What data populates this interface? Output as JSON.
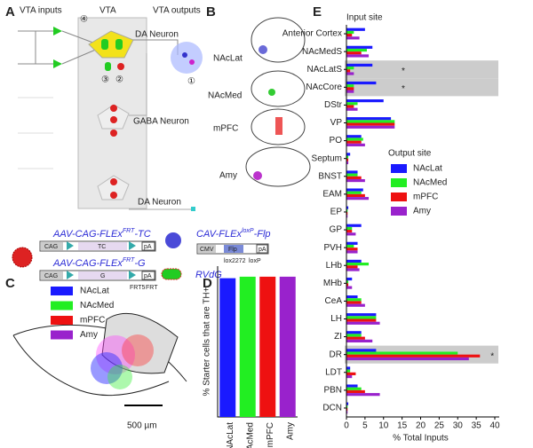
{
  "panel_labels": [
    "A",
    "B",
    "C",
    "D",
    "E"
  ],
  "panel_a": {
    "headers": [
      "VTA inputs",
      "VTA",
      "VTA outputs"
    ],
    "neurons": [
      "DA Neuron",
      "GABA Neuron",
      "DA Neuron"
    ],
    "markers": [
      "④",
      "③",
      "②",
      "①"
    ],
    "constructs": [
      {
        "name": "AAV-CAG-FLEx",
        "sup": "FRT",
        "suffix": "-TC"
      },
      {
        "name": "AAV-CAG-FLEx",
        "sup": "FRT",
        "suffix": "-G"
      },
      {
        "name": "CAV-FLEx",
        "sup": "loxP",
        "suffix": "-Flp"
      },
      {
        "name": "RVdG"
      }
    ],
    "elements": [
      "CAG",
      "TC",
      "pA",
      "CAG",
      "G",
      "pA",
      "FRT5",
      "FRT",
      "CMV",
      "Flp",
      "pA",
      "lox2272",
      "loxP"
    ]
  },
  "panel_b": {
    "sites": [
      "NAcLat",
      "NAcMed",
      "mPFC",
      "Amy"
    ]
  },
  "panel_c": {
    "legend": [
      {
        "name": "NAcLat",
        "color": "#1a1aff"
      },
      {
        "name": "NAcMed",
        "color": "#22ee22"
      },
      {
        "name": "mPFC",
        "color": "#ee1111"
      },
      {
        "name": "Amy",
        "color": "#9922cc"
      }
    ],
    "scale_bar": "500 µm"
  },
  "chart_data": [
    {
      "type": "bar",
      "ylabel": "% Starter cells that are TH+",
      "categories": [
        "NAcLat",
        "NAcMed",
        "mPFC",
        "Amy"
      ],
      "values": [
        92,
        93,
        93,
        93
      ],
      "colors": [
        "#1a1aff",
        "#22ee22",
        "#ee1111",
        "#9922cc"
      ],
      "ylim": [
        0,
        100
      ]
    },
    {
      "type": "hbar",
      "title": "Input site",
      "xlabel": "% Total Inputs",
      "legend_title": "Output site",
      "categories": [
        "Anterior Cortex",
        "NAcMedS",
        "NAcLatS",
        "NAcCore",
        "DStr",
        "VP",
        "PO",
        "Septum",
        "BNST",
        "EAM",
        "EP",
        "GP",
        "PVH",
        "LHb",
        "MHb",
        "CeA",
        "LH",
        "ZI",
        "DR",
        "LDT",
        "PBN",
        "DCN"
      ],
      "significance": [
        null,
        null,
        "*",
        "*",
        null,
        null,
        null,
        null,
        null,
        null,
        null,
        null,
        null,
        null,
        null,
        null,
        null,
        null,
        "*",
        null,
        null,
        null
      ],
      "series": [
        {
          "name": "NAcLat",
          "color": "#1a1aff",
          "values": [
            5,
            7,
            7,
            8,
            10,
            12,
            4,
            1,
            3,
            4.5,
            0.5,
            4,
            3,
            4,
            1.5,
            3,
            8,
            4,
            8,
            1,
            3,
            0.5
          ]
        },
        {
          "name": "NAcMed",
          "color": "#22ee22",
          "values": [
            2,
            5.5,
            2,
            2,
            3,
            13,
            4.5,
            0.5,
            3,
            4,
            0.3,
            1.5,
            2,
            6,
            0.5,
            4,
            8,
            4,
            30,
            1,
            4,
            0.3
          ]
        },
        {
          "name": "mPFC",
          "color": "#ee1111",
          "values": [
            1.5,
            4,
            1,
            2,
            2,
            13,
            4,
            0.5,
            4,
            5,
            0.3,
            1.5,
            3,
            3,
            0.5,
            4,
            8,
            5,
            36,
            2.5,
            5,
            0.3
          ]
        },
        {
          "name": "Amy",
          "color": "#9922cc",
          "values": [
            3.5,
            6,
            2,
            2,
            3,
            13,
            5,
            0.5,
            5,
            6,
            0.3,
            2.5,
            3,
            3.5,
            1.5,
            5,
            9,
            7,
            33,
            1.5,
            9,
            0.3
          ]
        }
      ],
      "xlim": [
        0,
        40
      ],
      "xticks": [
        0,
        5,
        10,
        15,
        20,
        25,
        30,
        35,
        40
      ]
    }
  ]
}
